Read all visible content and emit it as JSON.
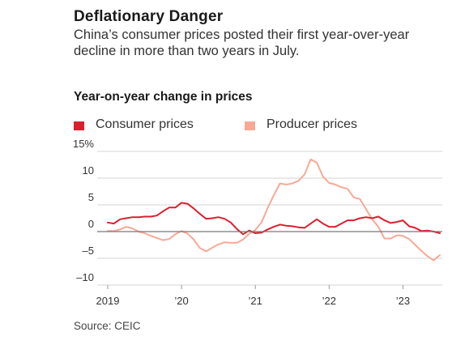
{
  "title": "Deflationary Danger",
  "subtitle": "China’s consumer prices posted their first year-over-year decline in more than two years in July.",
  "source": "Source: CEIC",
  "colors": {
    "consumer": "#d9202e",
    "producer": "#f7a996",
    "grid": "#d6d6d6",
    "zero": "#777777",
    "axis": "#999999"
  },
  "chart_data": {
    "type": "line",
    "title": "Year-on-year change in prices",
    "legend": "top-left",
    "grid": true,
    "x_start": "2019-01",
    "x_end": "2023-07",
    "ylim": [
      -10,
      15
    ],
    "y_ticks": [
      15,
      10,
      5,
      0,
      -5,
      -10
    ],
    "y_tick_labels": [
      "15%",
      "10",
      "5",
      "0",
      "–5",
      "–10"
    ],
    "x_ticks": [
      "2019-01",
      "2020-01",
      "2021-01",
      "2022-01",
      "2023-01"
    ],
    "x_tick_labels": [
      "2019",
      "’20",
      "’21",
      "’22",
      "’23"
    ],
    "series": [
      {
        "name": "Consumer prices",
        "values": [
          1.7,
          1.5,
          2.3,
          2.5,
          2.7,
          2.7,
          2.8,
          2.8,
          3.0,
          3.8,
          4.5,
          4.5,
          5.4,
          5.2,
          4.3,
          3.3,
          2.4,
          2.5,
          2.7,
          2.4,
          1.7,
          0.5,
          -0.5,
          0.2,
          -0.3,
          -0.2,
          0.4,
          0.9,
          1.3,
          1.1,
          1.0,
          0.8,
          0.7,
          1.5,
          2.3,
          1.5,
          0.9,
          0.9,
          1.5,
          2.1,
          2.1,
          2.5,
          2.7,
          2.5,
          2.8,
          2.1,
          1.6,
          1.8,
          2.1,
          1.0,
          0.7,
          0.1,
          0.2,
          0.0,
          -0.3
        ]
      },
      {
        "name": "Producer prices",
        "values": [
          0.1,
          0.1,
          0.4,
          0.9,
          0.6,
          0.0,
          -0.3,
          -0.8,
          -1.2,
          -1.6,
          -1.4,
          -0.5,
          0.1,
          -0.4,
          -1.5,
          -3.1,
          -3.7,
          -3.0,
          -2.4,
          -2.0,
          -2.1,
          -2.1,
          -1.5,
          -0.4,
          0.3,
          1.7,
          4.4,
          6.8,
          9.0,
          8.8,
          9.0,
          9.5,
          10.7,
          13.5,
          12.9,
          10.3,
          9.1,
          8.8,
          8.3,
          8.0,
          6.4,
          6.1,
          4.2,
          2.3,
          0.9,
          -1.3,
          -1.3,
          -0.7,
          -0.8,
          -1.4,
          -2.5,
          -3.6,
          -4.6,
          -5.4,
          -4.4
        ]
      }
    ]
  }
}
